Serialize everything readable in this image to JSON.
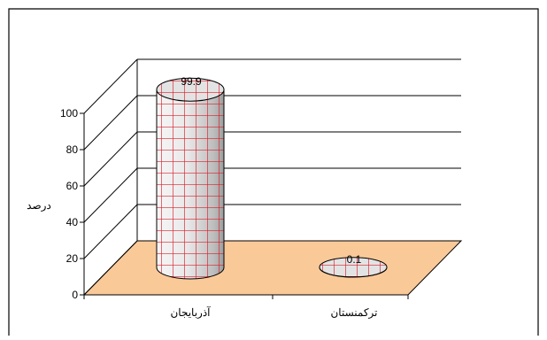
{
  "chart_data": {
    "type": "bar",
    "bar_shape": "3d-cylinder",
    "categories": [
      "آذربایجان",
      "ترکمنستان"
    ],
    "values": [
      99.9,
      0.1
    ],
    "data_labels": [
      "99.9",
      "0.1"
    ],
    "title": "",
    "xlabel": "",
    "ylabel": "درصد",
    "ylim": [
      0,
      100
    ],
    "y_ticks": [
      "0",
      "20",
      "40",
      "60",
      "80",
      "100"
    ],
    "grid": true,
    "legend": "none",
    "colors": {
      "floor": "#f9c998",
      "cylinder_fill": "#e6e6e6",
      "cylinder_grid": "#d81e2c",
      "outline": "#000000",
      "frame": "#000000"
    }
  }
}
